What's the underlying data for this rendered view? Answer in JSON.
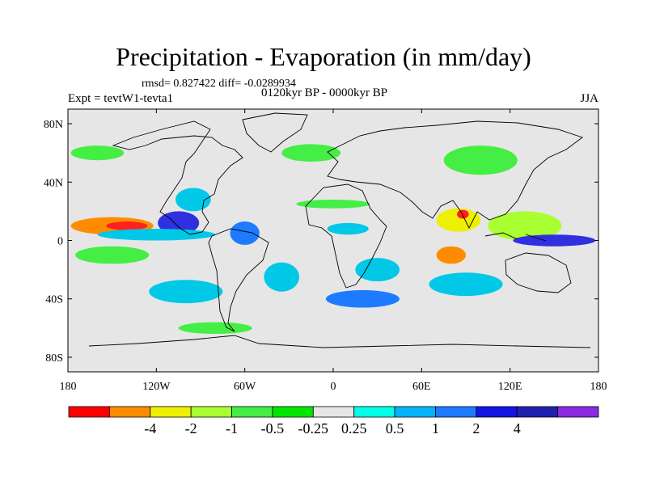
{
  "title": "Precipitation - Evaporation (in mm/day)",
  "stats": "rmsd= 0.827422 diff= -0.0289934",
  "period": "0120kyr BP - 0000kyr BP",
  "experiment": "Expt = tevtW1-tevta1",
  "season": "JJA",
  "map_data": {
    "lon_range": [
      -180,
      180
    ],
    "lat_range": [
      -90,
      90
    ],
    "lon_ticks": [
      {
        "value": -180,
        "label": "180"
      },
      {
        "value": -120,
        "label": "120W"
      },
      {
        "value": -60,
        "label": "60W"
      },
      {
        "value": 0,
        "label": "0"
      },
      {
        "value": 60,
        "label": "60E"
      },
      {
        "value": 120,
        "label": "120E"
      },
      {
        "value": 180,
        "label": "180"
      }
    ],
    "lat_ticks": [
      {
        "value": 80,
        "label": "80N"
      },
      {
        "value": 40,
        "label": "40N"
      },
      {
        "value": 0,
        "label": "0"
      },
      {
        "value": -40,
        "label": "40S"
      },
      {
        "value": -80,
        "label": "80S"
      }
    ],
    "background_color": "#e6e6e6",
    "regions": [
      {
        "lon": -150,
        "lat": 10,
        "rx": 28,
        "ry": 6,
        "color": "#ff8c00"
      },
      {
        "lon": -140,
        "lat": 10,
        "rx": 14,
        "ry": 3,
        "color": "#ff2020"
      },
      {
        "lon": -105,
        "lat": 12,
        "rx": 14,
        "ry": 8,
        "color": "#3030e0"
      },
      {
        "lon": -120,
        "lat": 4,
        "rx": 40,
        "ry": 4,
        "color": "#00c8e6"
      },
      {
        "lon": -150,
        "lat": -10,
        "rx": 25,
        "ry": 6,
        "color": "#44ee44"
      },
      {
        "lon": -95,
        "lat": 28,
        "rx": 12,
        "ry": 8,
        "color": "#00c8e6"
      },
      {
        "lon": -60,
        "lat": 5,
        "rx": 10,
        "ry": 8,
        "color": "#1e7bff"
      },
      {
        "lon": -35,
        "lat": -25,
        "rx": 12,
        "ry": 10,
        "color": "#00c8e6"
      },
      {
        "lon": -15,
        "lat": 60,
        "rx": 20,
        "ry": 6,
        "color": "#44ee44"
      },
      {
        "lon": -160,
        "lat": 60,
        "rx": 18,
        "ry": 5,
        "color": "#44ee44"
      },
      {
        "lon": 10,
        "lat": 8,
        "rx": 14,
        "ry": 4,
        "color": "#00c8e6"
      },
      {
        "lon": 0,
        "lat": 25,
        "rx": 25,
        "ry": 3,
        "color": "#44ee44"
      },
      {
        "lon": 30,
        "lat": -20,
        "rx": 15,
        "ry": 8,
        "color": "#00c8e6"
      },
      {
        "lon": 85,
        "lat": 14,
        "rx": 15,
        "ry": 8,
        "color": "#eef000"
      },
      {
        "lon": 88,
        "lat": 18,
        "rx": 4,
        "ry": 3,
        "color": "#ff2020"
      },
      {
        "lon": 130,
        "lat": 10,
        "rx": 25,
        "ry": 10,
        "color": "#aaff33"
      },
      {
        "lon": 150,
        "lat": 0,
        "rx": 28,
        "ry": 4,
        "color": "#3030e0"
      },
      {
        "lon": 80,
        "lat": -10,
        "rx": 10,
        "ry": 6,
        "color": "#ff8c00"
      },
      {
        "lon": 90,
        "lat": -30,
        "rx": 25,
        "ry": 8,
        "color": "#00c8e6"
      },
      {
        "lon": 20,
        "lat": -40,
        "rx": 25,
        "ry": 6,
        "color": "#1e7bff"
      },
      {
        "lon": -100,
        "lat": -35,
        "rx": 25,
        "ry": 8,
        "color": "#00c8e6"
      },
      {
        "lon": 100,
        "lat": 55,
        "rx": 25,
        "ry": 10,
        "color": "#44ee44"
      },
      {
        "lon": -80,
        "lat": -60,
        "rx": 25,
        "ry": 4,
        "color": "#44ee44"
      }
    ]
  },
  "colorbar": {
    "colors": [
      "#ff0000",
      "#ff8c00",
      "#eef000",
      "#aaff33",
      "#44ee44",
      "#00e600",
      "#e6e6e6",
      "#00ffe6",
      "#00b4ff",
      "#1e7bff",
      "#1414e6",
      "#2020b0",
      "#8a2be2"
    ],
    "labels": [
      "-4",
      "-2",
      "-1",
      "-0.5",
      "-0.25",
      "0.25",
      "0.5",
      "1",
      "2",
      "4"
    ]
  }
}
